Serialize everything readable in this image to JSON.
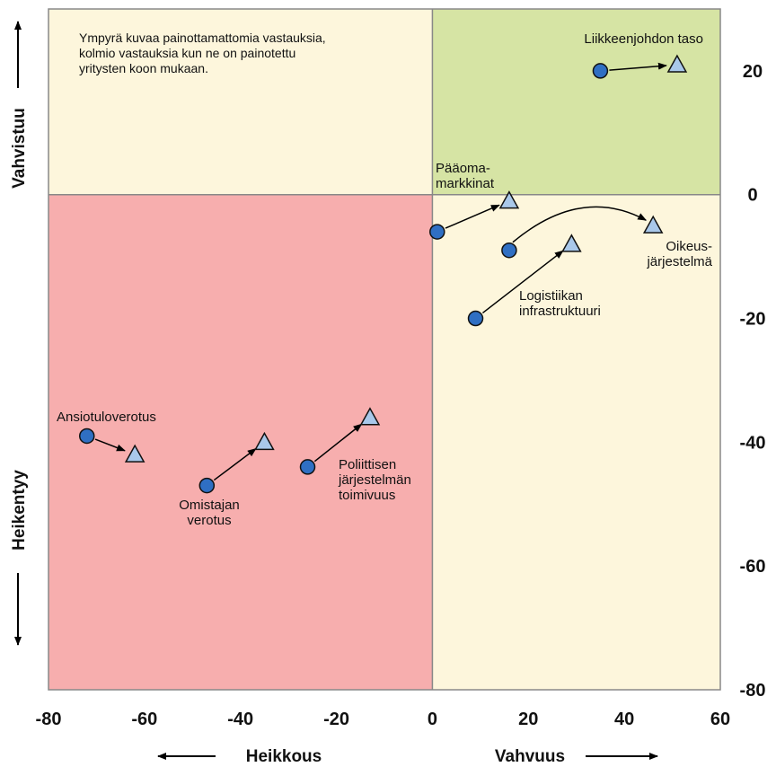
{
  "chart_data": {
    "type": "scatter",
    "title": "",
    "note": [
      "Ympyrä kuvaa painottamattomia vastauksia,",
      "kolmio vastauksia kun ne on painotettu",
      "yritysten koon mukaan."
    ],
    "xlim": [
      -80,
      60
    ],
    "ylim": [
      -80,
      30
    ],
    "x_ticks": [
      "-80",
      "-60",
      "-40",
      "-20",
      "0",
      "20",
      "40",
      "60"
    ],
    "y_ticks": [
      "20",
      "0",
      "-20",
      "-40",
      "-60",
      "-80"
    ],
    "x_axis_left": "Heikkous",
    "x_axis_right": "Vahvuus",
    "y_axis_top": "Vahvistuu",
    "y_axis_bottom": "Heikentyy",
    "quadrant_colors": {
      "top_left": "#fdf6dc",
      "top_right": "#d6e4a4",
      "bottom_left": "#f7aeae",
      "bottom_right": "#fdf6dc"
    },
    "marker_colors": {
      "circle": "#2f6fc3",
      "triangle": "#a9c8ea"
    },
    "series": [
      {
        "name": "Ympyrä (painottamaton)",
        "marker": "circle"
      },
      {
        "name": "Kolmio (painotettu)",
        "marker": "triangle"
      }
    ],
    "points": [
      {
        "label": [
          "Liikkeenjohdon taso"
        ],
        "circle": [
          35,
          20
        ],
        "triangle": [
          51,
          21
        ],
        "curve": false
      },
      {
        "label": [
          "Pääoma-",
          "markkinat"
        ],
        "circle": [
          1,
          -6
        ],
        "triangle": [
          16,
          -1
        ],
        "curve": false
      },
      {
        "label": [
          "Oikeus-",
          "järjestelmä"
        ],
        "circle": [
          16,
          -9
        ],
        "triangle": [
          46,
          -5
        ],
        "curve": true
      },
      {
        "label": [
          "Logistiikan",
          "infrastruktuuri"
        ],
        "circle": [
          9,
          -20
        ],
        "triangle": [
          29,
          -8
        ],
        "curve": false
      },
      {
        "label": [
          "Ansiotuloverotus"
        ],
        "circle": [
          -72,
          -39
        ],
        "triangle": [
          -62,
          -42
        ],
        "curve": false
      },
      {
        "label": [
          "Omistajan",
          "verotus"
        ],
        "circle": [
          -47,
          -47
        ],
        "triangle": [
          -35,
          -40
        ],
        "curve": false
      },
      {
        "label": [
          "Poliittisen",
          "järjestelmän",
          "toimivuus"
        ],
        "circle": [
          -26,
          -44
        ],
        "triangle": [
          -13,
          -36
        ],
        "curve": false
      }
    ]
  }
}
